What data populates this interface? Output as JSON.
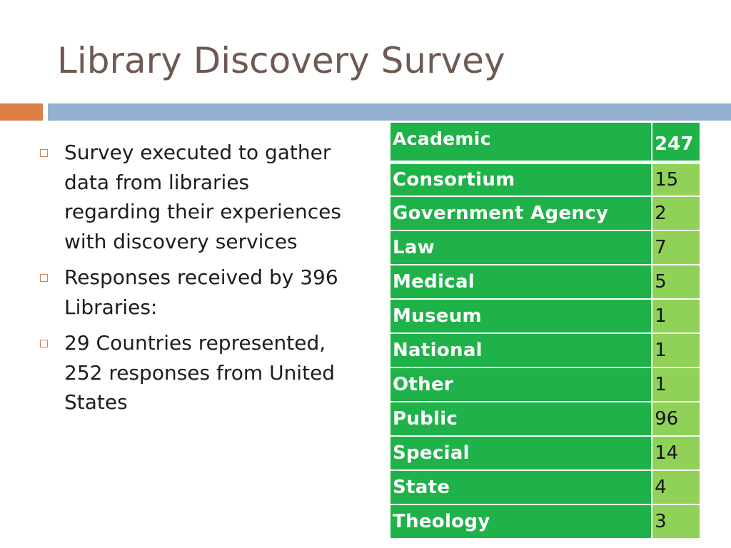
{
  "slide": {
    "title": "Library Discovery Survey",
    "colors": {
      "title": "#6e5a53",
      "accent_orange": "#dd8047",
      "accent_blue": "#93b0d1",
      "table_dark_green": "#1fb249",
      "table_light_green": "#8fd257"
    }
  },
  "bullets": [
    {
      "text": "Survey executed to gather data from libraries regarding their experiences with discovery services"
    },
    {
      "text": "Responses received by 396 Libraries:"
    },
    {
      "text": "29 Countries represented, 252 responses from United States"
    }
  ],
  "table": {
    "rows": [
      {
        "category": "Academic",
        "count": "247"
      },
      {
        "category": "Consortium",
        "count": "15"
      },
      {
        "category": "Government Agency",
        "count": "2"
      },
      {
        "category": "Law",
        "count": "7"
      },
      {
        "category": "Medical",
        "count": "5"
      },
      {
        "category": "Museum",
        "count": "1"
      },
      {
        "category": "National",
        "count": "1"
      },
      {
        "category": "Other",
        "count": "1"
      },
      {
        "category": "Public",
        "count": "96"
      },
      {
        "category": "Special",
        "count": "14"
      },
      {
        "category": "State",
        "count": "4"
      },
      {
        "category": "Theology",
        "count": "3"
      }
    ]
  }
}
